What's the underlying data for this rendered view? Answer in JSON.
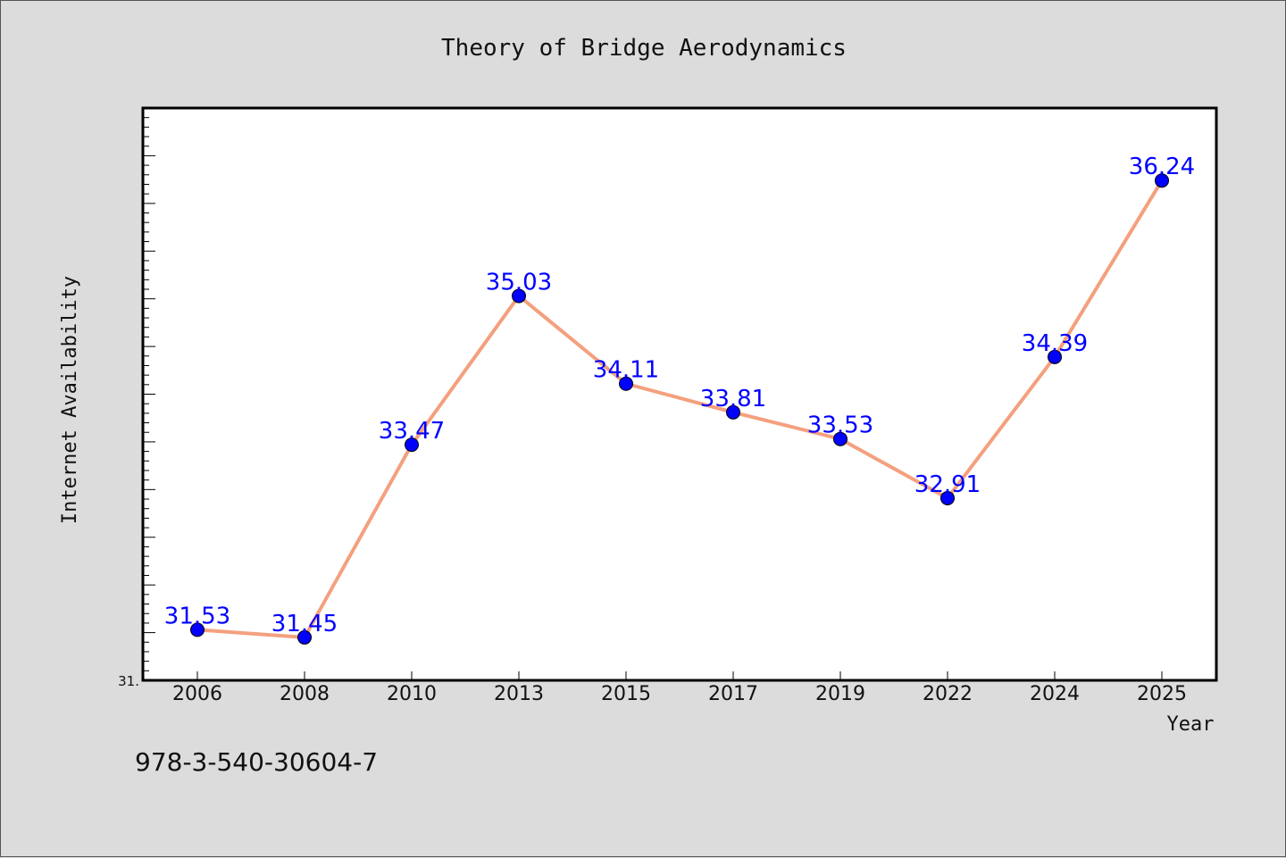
{
  "chart_data": {
    "type": "line",
    "title": "Theory of Bridge Aerodynamics",
    "xlabel": "Year",
    "ylabel": "Internet Availability",
    "categories": [
      "2006",
      "2008",
      "2010",
      "2013",
      "2015",
      "2017",
      "2019",
      "2022",
      "2024",
      "2025"
    ],
    "values": [
      31.53,
      31.45,
      33.47,
      35.03,
      34.11,
      33.81,
      33.53,
      32.91,
      34.39,
      36.24
    ],
    "data_labels": [
      "31.53",
      "31.45",
      "33.47",
      "35.03",
      "34.11",
      "33.81",
      "33.53",
      "32.91",
      "34.39",
      "36.24"
    ],
    "ylim": [
      31.0,
      37.0
    ],
    "y_tick_labels": [
      "31."
    ],
    "grid": false,
    "line_color": "#f4a07e",
    "marker_color": "#0000ff",
    "label_color": "#0000ff"
  },
  "footer": {
    "isbn": "978-3-540-30604-7"
  }
}
